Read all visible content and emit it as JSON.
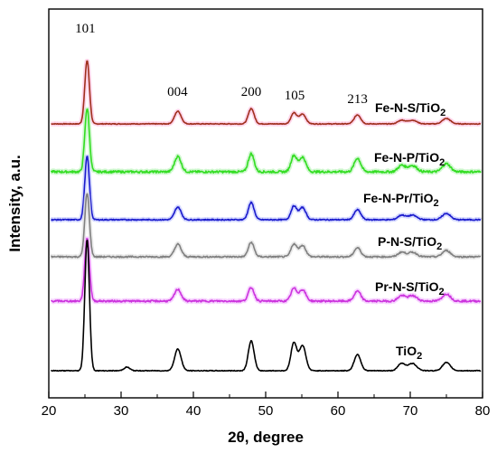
{
  "chart_data": {
    "type": "line",
    "xlabel": "2θ, degree",
    "ylabel": "Intensity, a.u.",
    "xlim": [
      20,
      80
    ],
    "x_ticks": [
      20,
      30,
      40,
      50,
      60,
      70,
      80
    ],
    "y_ticks_shown": false,
    "legend": "inline labels on right",
    "peak_labels": [
      {
        "text": "101",
        "x": 25.3
      },
      {
        "text": "004",
        "x": 37.8
      },
      {
        "text": "200",
        "x": 48.0
      },
      {
        "text": "105",
        "x": 54.0
      },
      {
        "text": "213",
        "x": 62.7
      }
    ],
    "series": [
      {
        "name": "Fe-N-S/TiO2",
        "color": "#a0301e",
        "glow": "#ffb0d8",
        "noise": 0.8,
        "values": {
          "baseline": 0,
          "p101": 70,
          "p004": 14,
          "p200": 17,
          "p105": 12,
          "p213": 10,
          "p70": 4,
          "p75": 6
        }
      },
      {
        "name": "Fe-N-P/TiO2",
        "color": "#33dd22",
        "glow": "#aaf0aa",
        "noise": 2.4,
        "values": {
          "baseline": 0,
          "p101": 70,
          "p004": 17,
          "p200": 20,
          "p105": 18,
          "p213": 15,
          "p70": 7,
          "p75": 9
        }
      },
      {
        "name": "Fe-N-Pr/TiO2",
        "color": "#1a1acc",
        "glow": "#b0b8ff",
        "noise": 1.2,
        "values": {
          "baseline": 0,
          "p101": 70,
          "p004": 14,
          "p200": 19,
          "p105": 15,
          "p213": 11,
          "p70": 5,
          "p75": 7
        }
      },
      {
        "name": "P-N-S/TiO2",
        "color": "#808080",
        "glow": "#d8d8d8",
        "noise": 1.6,
        "values": {
          "baseline": 0,
          "p101": 70,
          "p004": 14,
          "p200": 16,
          "p105": 14,
          "p213": 10,
          "p70": 5,
          "p75": 7
        }
      },
      {
        "name": "Pr-N-S/TiO2",
        "color": "#cc33dd",
        "glow": "#f0b0ff",
        "noise": 2.0,
        "values": {
          "baseline": 0,
          "p101": 70,
          "p004": 13,
          "p200": 15,
          "p105": 14,
          "p213": 11,
          "p70": 6,
          "p75": 8
        }
      },
      {
        "name": "TiO2",
        "color": "#000000",
        "glow": "#000000",
        "noise": 0.8,
        "values": {
          "baseline": 0,
          "p101": 145,
          "p004": 24,
          "p200": 33,
          "p105": 31,
          "p213": 18,
          "p70": 8,
          "p75": 9
        }
      }
    ]
  }
}
